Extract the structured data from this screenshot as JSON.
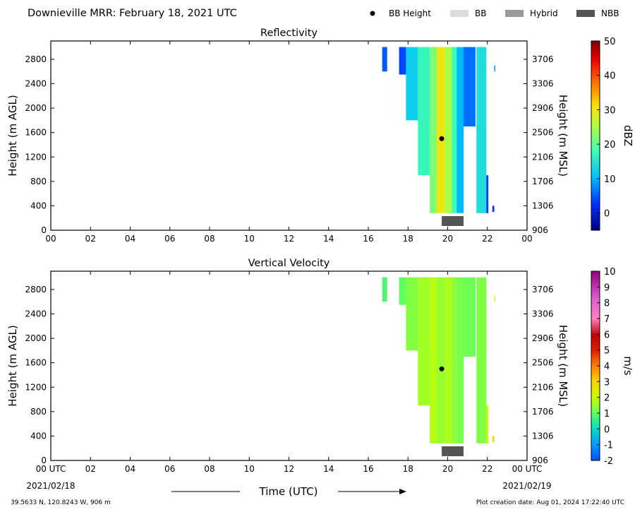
{
  "header": {
    "title": "Downieville MRR:  February 18, 2021 UTC",
    "legend": [
      {
        "label": "BB Height",
        "kind": "dot",
        "color": "#000000"
      },
      {
        "label": "BB",
        "kind": "box",
        "color": "#dcdcdc"
      },
      {
        "label": "Hybrid",
        "kind": "box",
        "color": "#999999"
      },
      {
        "label": "NBB",
        "kind": "box",
        "color": "#555555"
      }
    ]
  },
  "footer": {
    "coords": "39.5633 N, 120.8243 W, 906 m",
    "creation": "Plot creation date: Aug 01, 2024 17:22:40 UTC",
    "time_label": "Time (UTC)",
    "start_date": "2021/02/18",
    "end_date": "2021/02/19"
  },
  "chart_data": [
    {
      "type": "heatmap",
      "title": "Reflectivity",
      "ylabel": "Height (m AGL)",
      "ylabel_right": "Height (m MSL)",
      "xlim": [
        0,
        24
      ],
      "ylim": [
        0,
        3100
      ],
      "x_ticks": [
        "00",
        "02",
        "04",
        "06",
        "08",
        "10",
        "12",
        "14",
        "16",
        "18",
        "20",
        "22",
        "00"
      ],
      "y_ticks": [
        0,
        400,
        800,
        1200,
        1600,
        2000,
        2400,
        2800
      ],
      "y_ticks_right": [
        "906",
        "1306",
        "1706",
        "2106",
        "2506",
        "2906",
        "3306",
        "3706"
      ],
      "colorbar": {
        "label": "dBZ",
        "min": -5,
        "max": 50,
        "ticks": [
          0,
          10,
          20,
          30,
          40,
          50
        ]
      },
      "bb_height": [
        {
          "x": 19.7,
          "y": 1500
        }
      ],
      "nbb_period": [
        19.7,
        20.8
      ],
      "precip_columns": [
        {
          "x_start": 16.7,
          "x_end": 16.95,
          "top": 3000,
          "bottom": 2600,
          "value": 5
        },
        {
          "x_start": 17.55,
          "x_end": 17.9,
          "top": 3000,
          "bottom": 2550,
          "value": 4
        },
        {
          "x_start": 17.9,
          "x_end": 18.5,
          "top": 3000,
          "bottom": 1800,
          "value": 12
        },
        {
          "x_start": 18.5,
          "x_end": 19.1,
          "top": 3000,
          "bottom": 900,
          "value": 17
        },
        {
          "x_start": 19.1,
          "x_end": 19.45,
          "top": 3000,
          "bottom": 280,
          "value": 22
        },
        {
          "x_start": 19.45,
          "x_end": 19.85,
          "top": 3000,
          "bottom": 280,
          "value": 30
        },
        {
          "x_start": 19.85,
          "x_end": 20.2,
          "top": 3000,
          "bottom": 280,
          "value": 25
        },
        {
          "x_start": 20.2,
          "x_end": 20.45,
          "top": 3000,
          "bottom": 280,
          "value": 18
        },
        {
          "x_start": 20.45,
          "x_end": 20.8,
          "top": 3000,
          "bottom": 280,
          "value": 10
        },
        {
          "x_start": 20.8,
          "x_end": 21.4,
          "top": 3000,
          "bottom": 1700,
          "value": 6
        },
        {
          "x_start": 21.45,
          "x_end": 21.95,
          "top": 3000,
          "bottom": 280,
          "value": 14
        },
        {
          "x_start": 21.95,
          "x_end": 22.05,
          "top": 900,
          "bottom": 280,
          "value": 3
        },
        {
          "x_start": 22.25,
          "x_end": 22.35,
          "top": 400,
          "bottom": 300,
          "value": 3
        },
        {
          "x_start": 22.35,
          "x_end": 22.4,
          "top": 2700,
          "bottom": 2600,
          "value": 8
        }
      ]
    },
    {
      "type": "heatmap",
      "title": "Vertical Velocity",
      "ylabel": "Height (m AGL)",
      "ylabel_right": "Height (m MSL)",
      "xlim": [
        0,
        24
      ],
      "ylim": [
        0,
        3100
      ],
      "x_ticks": [
        "00 UTC",
        "02",
        "04",
        "06",
        "08",
        "10",
        "12",
        "14",
        "16",
        "18",
        "20",
        "22",
        "00 UTC"
      ],
      "y_ticks": [
        0,
        400,
        800,
        1200,
        1600,
        2000,
        2400,
        2800
      ],
      "y_ticks_right": [
        "906",
        "1306",
        "1706",
        "2106",
        "2506",
        "2906",
        "3306",
        "3706"
      ],
      "colorbar": {
        "label": "m/s",
        "min": -2,
        "max": 10,
        "ticks": [
          -2,
          -1,
          0,
          1,
          2,
          3,
          4,
          5,
          6,
          7,
          8,
          9,
          10
        ]
      },
      "bb_height": [
        {
          "x": 19.7,
          "y": 1500
        }
      ],
      "nbb_period": [
        19.7,
        20.8
      ],
      "precip_columns": [
        {
          "x_start": 16.7,
          "x_end": 16.95,
          "top": 3000,
          "bottom": 2600,
          "value": 0.8
        },
        {
          "x_start": 17.55,
          "x_end": 17.9,
          "top": 3000,
          "bottom": 2550,
          "value": 1.0
        },
        {
          "x_start": 17.9,
          "x_end": 18.5,
          "top": 3000,
          "bottom": 1800,
          "value": 1.3
        },
        {
          "x_start": 18.5,
          "x_end": 19.1,
          "top": 3000,
          "bottom": 900,
          "value": 1.6
        },
        {
          "x_start": 19.1,
          "x_end": 19.45,
          "top": 3000,
          "bottom": 280,
          "value": 1.8
        },
        {
          "x_start": 19.45,
          "x_end": 19.85,
          "top": 3000,
          "bottom": 280,
          "value": 1.5
        },
        {
          "x_start": 19.85,
          "x_end": 20.2,
          "top": 3000,
          "bottom": 280,
          "value": 1.7
        },
        {
          "x_start": 20.2,
          "x_end": 20.45,
          "top": 3000,
          "bottom": 280,
          "value": 1.4
        },
        {
          "x_start": 20.45,
          "x_end": 20.8,
          "top": 3000,
          "bottom": 280,
          "value": 1.2
        },
        {
          "x_start": 20.8,
          "x_end": 21.4,
          "top": 3000,
          "bottom": 1700,
          "value": 1.1
        },
        {
          "x_start": 21.45,
          "x_end": 21.95,
          "top": 3000,
          "bottom": 280,
          "value": 1.3
        },
        {
          "x_start": 21.95,
          "x_end": 22.05,
          "top": 900,
          "bottom": 280,
          "value": 2.0
        },
        {
          "x_start": 22.25,
          "x_end": 22.35,
          "top": 400,
          "bottom": 300,
          "value": 2.5
        },
        {
          "x_start": 22.35,
          "x_end": 22.4,
          "top": 2700,
          "bottom": 2600,
          "value": 2.0
        }
      ]
    }
  ]
}
